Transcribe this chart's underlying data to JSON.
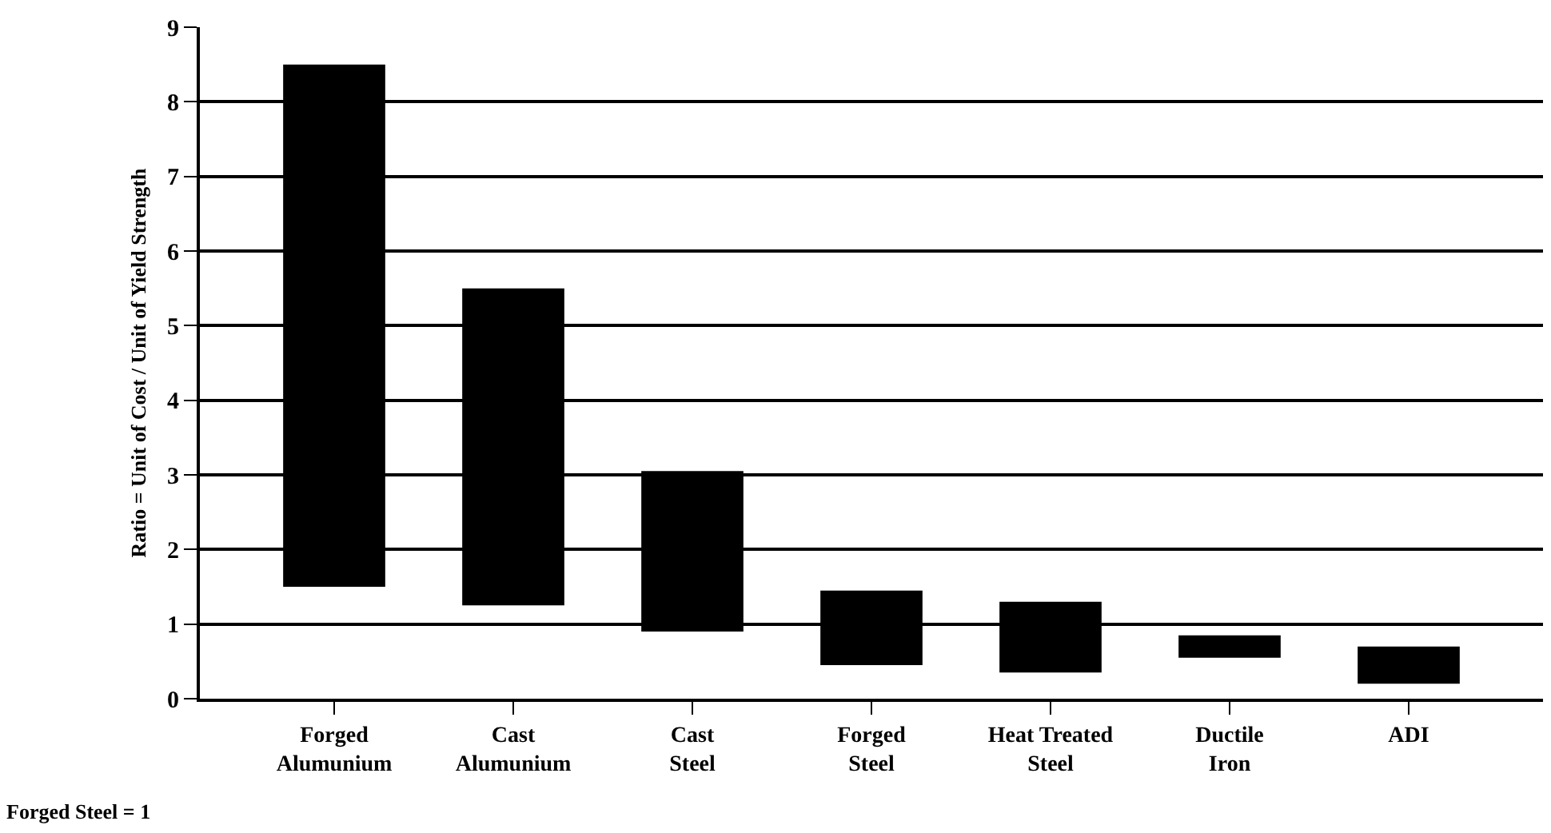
{
  "chart_data": {
    "type": "bar",
    "ylabel": "Ratio = Unit of Cost / Unit of Yield Strength",
    "categories": [
      "Forged\nAlumunium",
      "Cast\nAlumunium",
      "Cast\nSteel",
      "Forged\nSteel",
      "Heat Treated\nSteel",
      "Ductile\nIron",
      "ADI"
    ],
    "base": [
      1.5,
      1.25,
      0.9,
      0.45,
      0.35,
      0.55,
      0.2
    ],
    "values": [
      7.0,
      4.25,
      2.15,
      1.0,
      0.95,
      0.3,
      0.5
    ],
    "color": "#000000",
    "ylim": [
      0,
      9
    ],
    "yticks": [
      0,
      1,
      2,
      3,
      4,
      5,
      6,
      7,
      8,
      9
    ],
    "grid": "y",
    "annotations": [
      "Forged Steel = 1"
    ]
  }
}
